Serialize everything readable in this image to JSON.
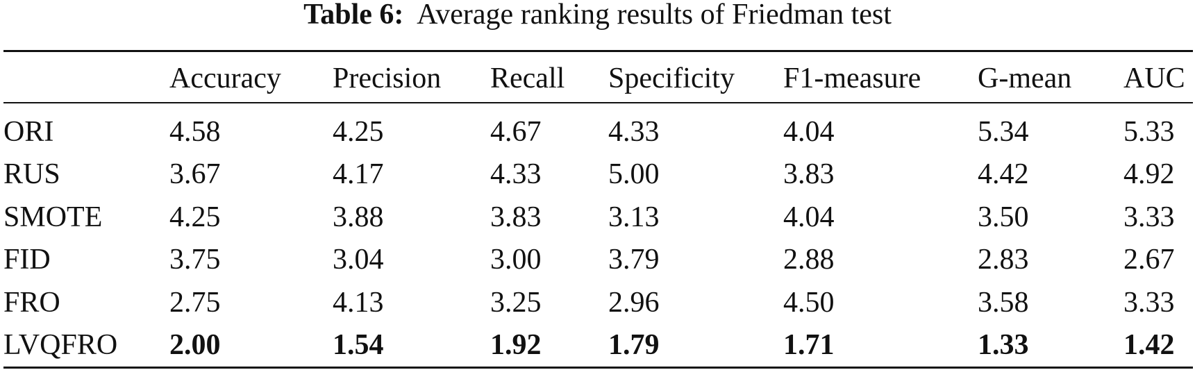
{
  "table": {
    "caption_label": "Table 6:",
    "caption": "Average ranking results of Friedman test",
    "columns": [
      "Accuracy",
      "Precision",
      "Recall",
      "Specificity",
      "F1-measure",
      "G-mean",
      "AUC"
    ],
    "rows": [
      {
        "label": "ORI",
        "values": [
          "4.58",
          "4.25",
          "4.67",
          "4.33",
          "4.04",
          "5.34",
          "5.33"
        ]
      },
      {
        "label": "RUS",
        "values": [
          "3.67",
          "4.17",
          "4.33",
          "5.00",
          "3.83",
          "4.42",
          "4.92"
        ]
      },
      {
        "label": "SMOTE",
        "values": [
          "4.25",
          "3.88",
          "3.83",
          "3.13",
          "4.04",
          "3.50",
          "3.33"
        ]
      },
      {
        "label": "FID",
        "values": [
          "3.75",
          "3.04",
          "3.00",
          "3.79",
          "2.88",
          "2.83",
          "2.67"
        ]
      },
      {
        "label": "FRO",
        "values": [
          "2.75",
          "4.13",
          "3.25",
          "2.96",
          "4.50",
          "3.58",
          "3.33"
        ]
      },
      {
        "label": "LVQFRO",
        "values": [
          "2.00",
          "1.54",
          "1.92",
          "1.79",
          "1.71",
          "1.33",
          "1.42"
        ],
        "bold": true
      }
    ]
  }
}
